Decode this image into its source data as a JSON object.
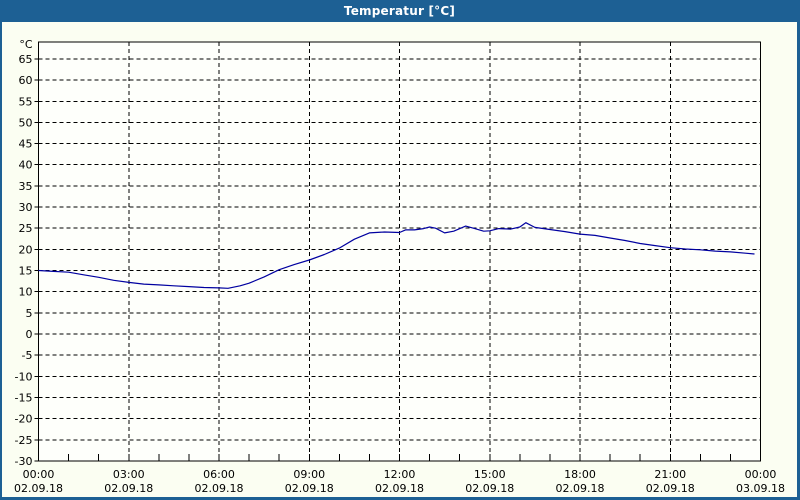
{
  "window": {
    "title": "Temperatur [°C]"
  },
  "colors": {
    "titlebar": "#1D6094",
    "frame": "#1D6094",
    "window_background": "#FBFEF2",
    "plot_background": "#FEFFFB",
    "line": "#0000A0",
    "grid": "#000000",
    "text": "#000000"
  },
  "chart_data": {
    "type": "line",
    "title": "Temperatur [°C]",
    "y_unit_label": "°C",
    "ylabel": "",
    "xlabel": "",
    "ylim": [
      -30,
      69
    ],
    "yticks": [
      65,
      60,
      55,
      50,
      45,
      40,
      35,
      30,
      25,
      20,
      15,
      10,
      5,
      0,
      -5,
      -10,
      -15,
      -20,
      -25,
      -30
    ],
    "xlim_hours": [
      0,
      24
    ],
    "x_major_tick_hours": [
      0,
      3,
      6,
      9,
      12,
      15,
      18,
      21,
      24
    ],
    "x_minor_tick_interval_hours": 1,
    "grid": "dashed",
    "legend_position": "none",
    "x_labels": [
      {
        "time": "00:00",
        "date": "02.09.18"
      },
      {
        "time": "03:00",
        "date": "02.09.18"
      },
      {
        "time": "06:00",
        "date": "02.09.18"
      },
      {
        "time": "09:00",
        "date": "02.09.18"
      },
      {
        "time": "12:00",
        "date": "02.09.18"
      },
      {
        "time": "15:00",
        "date": "02.09.18"
      },
      {
        "time": "18:00",
        "date": "02.09.18"
      },
      {
        "time": "21:00",
        "date": "02.09.18"
      },
      {
        "time": "00:00",
        "date": "03.09.18"
      }
    ],
    "series": [
      {
        "name": "Temperatur",
        "points": [
          [
            0.0,
            15.0
          ],
          [
            0.5,
            14.8
          ],
          [
            1.0,
            14.6
          ],
          [
            1.5,
            14.0
          ],
          [
            2.0,
            13.4
          ],
          [
            2.5,
            12.7
          ],
          [
            3.0,
            12.2
          ],
          [
            3.5,
            11.8
          ],
          [
            4.0,
            11.6
          ],
          [
            4.5,
            11.4
          ],
          [
            5.0,
            11.2
          ],
          [
            5.5,
            11.0
          ],
          [
            6.0,
            10.9
          ],
          [
            6.3,
            10.8
          ],
          [
            6.7,
            11.4
          ],
          [
            7.0,
            12.0
          ],
          [
            7.5,
            13.5
          ],
          [
            8.0,
            15.2
          ],
          [
            8.5,
            16.4
          ],
          [
            9.0,
            17.5
          ],
          [
            9.5,
            18.8
          ],
          [
            10.0,
            20.3
          ],
          [
            10.5,
            22.4
          ],
          [
            11.0,
            23.9
          ],
          [
            11.5,
            24.1
          ],
          [
            12.0,
            24.0
          ],
          [
            12.2,
            24.6
          ],
          [
            12.5,
            24.6
          ],
          [
            12.8,
            24.9
          ],
          [
            13.0,
            25.3
          ],
          [
            13.2,
            25.0
          ],
          [
            13.5,
            23.9
          ],
          [
            13.8,
            24.3
          ],
          [
            14.2,
            25.5
          ],
          [
            14.5,
            24.9
          ],
          [
            14.8,
            24.3
          ],
          [
            15.0,
            24.4
          ],
          [
            15.3,
            24.9
          ],
          [
            15.7,
            24.8
          ],
          [
            16.0,
            25.3
          ],
          [
            16.2,
            26.3
          ],
          [
            16.5,
            25.2
          ],
          [
            17.0,
            24.7
          ],
          [
            17.5,
            24.2
          ],
          [
            18.0,
            23.6
          ],
          [
            18.5,
            23.3
          ],
          [
            19.0,
            22.7
          ],
          [
            19.5,
            22.1
          ],
          [
            20.0,
            21.4
          ],
          [
            20.5,
            20.9
          ],
          [
            21.0,
            20.4
          ],
          [
            21.5,
            20.1
          ],
          [
            22.0,
            19.9
          ],
          [
            22.5,
            19.6
          ],
          [
            23.0,
            19.4
          ],
          [
            23.5,
            19.1
          ],
          [
            23.8,
            18.9
          ]
        ]
      }
    ]
  }
}
